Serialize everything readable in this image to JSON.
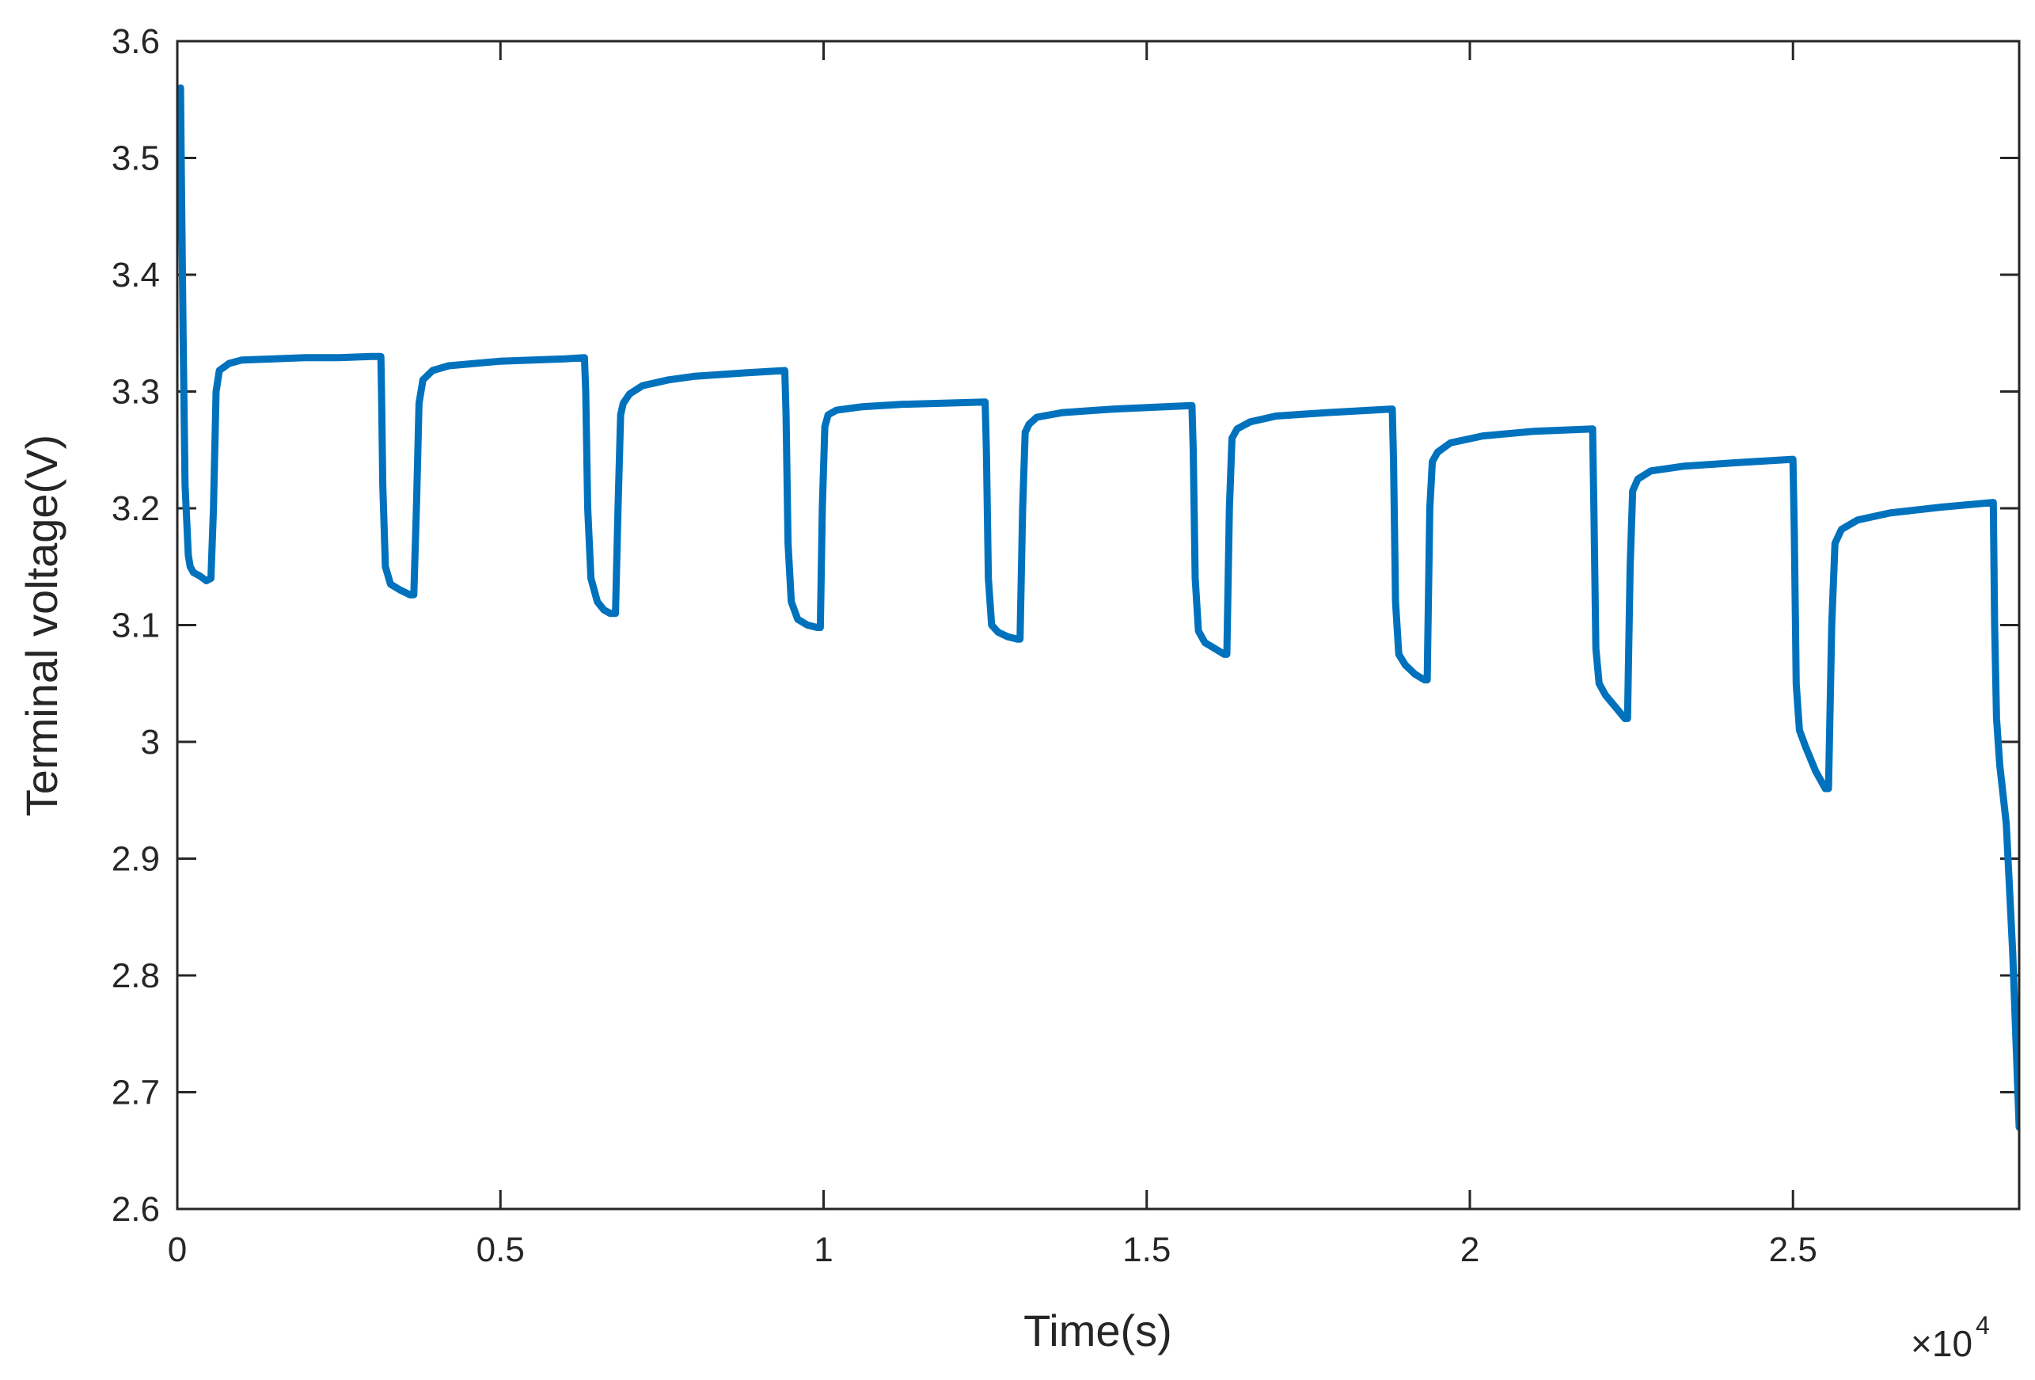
{
  "chart_data": {
    "type": "line",
    "title": "",
    "xlabel": "Time(s)",
    "ylabel": "Terminal voltage(V)",
    "x_multiplier_label": "×10",
    "x_multiplier_exponent": "4",
    "xlim": [
      0,
      2.85
    ],
    "ylim": [
      2.6,
      3.6
    ],
    "x_ticks": [
      0,
      0.5,
      1,
      1.5,
      2,
      2.5
    ],
    "x_tick_labels": [
      "0",
      "0.5",
      "1",
      "1.5",
      "2",
      "2.5"
    ],
    "y_ticks": [
      2.6,
      2.7,
      2.8,
      2.9,
      3.0,
      3.1,
      3.2,
      3.3,
      3.4,
      3.5,
      3.6
    ],
    "y_tick_labels": [
      "2.6",
      "2.7",
      "2.8",
      "2.9",
      "3",
      "3.1",
      "3.2",
      "3.3",
      "3.4",
      "3.5",
      "3.6"
    ],
    "grid": false,
    "line_color": "#0072BD",
    "series": [
      {
        "x": [
          0.005,
          0.006,
          0.009,
          0.012,
          0.017,
          0.02,
          0.025,
          0.035,
          0.045,
          0.052,
          0.056,
          0.06,
          0.065,
          0.08,
          0.1,
          0.15,
          0.2,
          0.25,
          0.3,
          0.315,
          0.316,
          0.318,
          0.322,
          0.33,
          0.345,
          0.36,
          0.366,
          0.37,
          0.374,
          0.38,
          0.395,
          0.42,
          0.5,
          0.6,
          0.63,
          0.632,
          0.635,
          0.64,
          0.65,
          0.66,
          0.67,
          0.678,
          0.682,
          0.686,
          0.69,
          0.7,
          0.72,
          0.76,
          0.8,
          0.88,
          0.94,
          0.942,
          0.945,
          0.95,
          0.96,
          0.975,
          0.99,
          0.995,
          0.998,
          1.002,
          1.007,
          1.02,
          1.06,
          1.12,
          1.25,
          1.252,
          1.255,
          1.26,
          1.27,
          1.285,
          1.3,
          1.304,
          1.308,
          1.312,
          1.318,
          1.33,
          1.37,
          1.45,
          1.57,
          1.572,
          1.575,
          1.58,
          1.59,
          1.605,
          1.62,
          1.624,
          1.628,
          1.632,
          1.64,
          1.66,
          1.7,
          1.78,
          1.88,
          1.882,
          1.885,
          1.89,
          1.9,
          1.915,
          1.93,
          1.934,
          1.938,
          1.942,
          1.95,
          1.97,
          2.02,
          2.1,
          2.19,
          2.192,
          2.195,
          2.2,
          2.21,
          2.225,
          2.24,
          2.244,
          2.248,
          2.252,
          2.26,
          2.28,
          2.33,
          2.41,
          2.5,
          2.502,
          2.505,
          2.51,
          2.52,
          2.535,
          2.55,
          2.555,
          2.56,
          2.565,
          2.575,
          2.6,
          2.65,
          2.73,
          2.81,
          2.812,
          2.815,
          2.82,
          2.83,
          2.84,
          2.85
        ],
        "y": [
          3.56,
          3.5,
          3.35,
          3.22,
          3.16,
          3.15,
          3.145,
          3.142,
          3.138,
          3.14,
          3.2,
          3.3,
          3.318,
          3.324,
          3.327,
          3.328,
          3.329,
          3.329,
          3.33,
          3.33,
          3.3,
          3.22,
          3.15,
          3.135,
          3.13,
          3.126,
          3.126,
          3.2,
          3.29,
          3.31,
          3.318,
          3.322,
          3.326,
          3.328,
          3.329,
          3.3,
          3.2,
          3.14,
          3.12,
          3.113,
          3.11,
          3.11,
          3.2,
          3.28,
          3.29,
          3.298,
          3.305,
          3.31,
          3.313,
          3.316,
          3.318,
          3.28,
          3.17,
          3.12,
          3.105,
          3.1,
          3.098,
          3.098,
          3.2,
          3.27,
          3.28,
          3.284,
          3.287,
          3.289,
          3.291,
          3.25,
          3.14,
          3.1,
          3.094,
          3.09,
          3.088,
          3.088,
          3.2,
          3.265,
          3.272,
          3.278,
          3.282,
          3.285,
          3.288,
          3.25,
          3.14,
          3.095,
          3.085,
          3.08,
          3.075,
          3.075,
          3.2,
          3.26,
          3.268,
          3.274,
          3.279,
          3.282,
          3.285,
          3.24,
          3.12,
          3.075,
          3.066,
          3.058,
          3.053,
          3.053,
          3.2,
          3.24,
          3.248,
          3.256,
          3.262,
          3.266,
          3.268,
          3.2,
          3.08,
          3.05,
          3.04,
          3.03,
          3.02,
          3.02,
          3.15,
          3.215,
          3.225,
          3.232,
          3.236,
          3.239,
          3.242,
          3.18,
          3.05,
          3.01,
          2.995,
          2.975,
          2.96,
          2.96,
          3.1,
          3.17,
          3.182,
          3.19,
          3.196,
          3.201,
          3.205,
          3.1,
          3.02,
          2.98,
          2.93,
          2.82,
          2.67
        ]
      }
    ]
  }
}
